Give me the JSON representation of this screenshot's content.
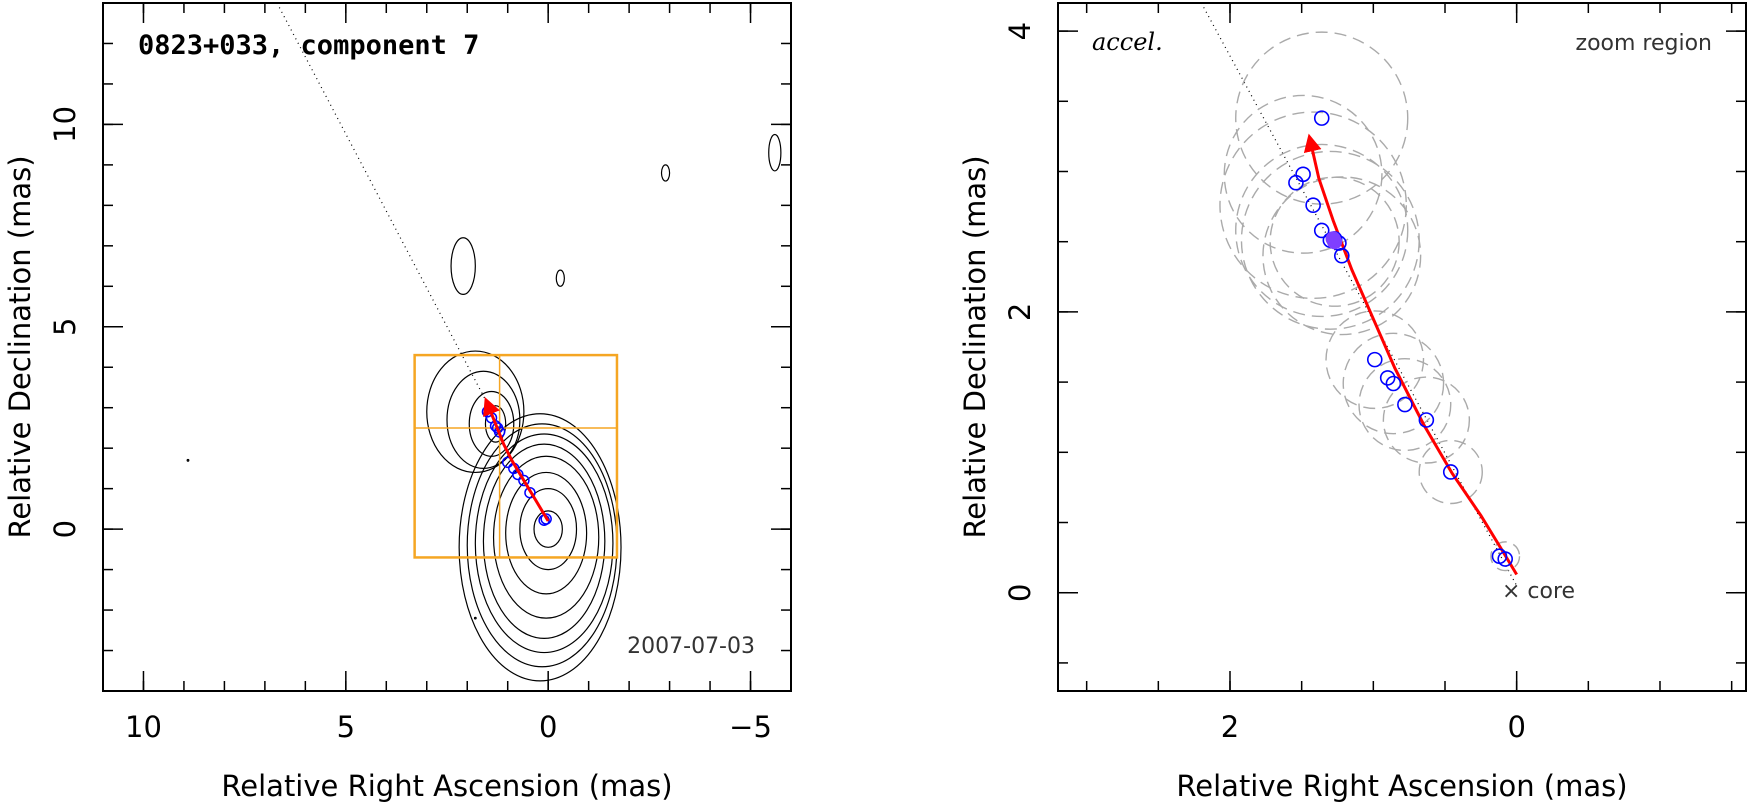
{
  "colors": {
    "box": "#f5a623",
    "path": "#ff0000",
    "circle": "#0000ff",
    "filled": "#7f3fff",
    "gauss": "#aaaaaa",
    "contour": "#000000"
  },
  "chart_data": [
    {
      "type": "scatter",
      "panel": "left",
      "title": "0823+033, component 7",
      "date_label": "2007-07-03",
      "xlabel": "Relative Right Ascension (mas)",
      "ylabel": "Relative Declination (mas)",
      "xlim": [
        11,
        -6
      ],
      "ylim": [
        -4,
        13
      ],
      "xticks": [
        10,
        5,
        0,
        -5
      ],
      "xtick_labels": [
        "10",
        "5",
        "0",
        "−5"
      ],
      "yticks": [
        0,
        5,
        10
      ],
      "ytick_labels": [
        "0",
        "5",
        "10"
      ],
      "zoom_box": {
        "x": [
          3.3,
          -1.7
        ],
        "y": [
          -0.7,
          4.3
        ],
        "cross_x": 1.2,
        "cross_y": 2.5
      },
      "trajectory": {
        "x": [
          0.0,
          0.3,
          0.6,
          0.9,
          1.1,
          1.3,
          1.5
        ],
        "y": [
          0.2,
          0.7,
          1.2,
          1.7,
          2.1,
          2.6,
          3.1
        ]
      },
      "components": {
        "x": [
          0.05,
          0.1,
          0.45,
          0.6,
          0.75,
          0.85,
          1.0,
          1.2,
          1.25,
          1.3,
          1.4,
          1.5
        ],
        "y": [
          0.25,
          0.22,
          0.9,
          1.2,
          1.35,
          1.5,
          1.65,
          2.4,
          2.5,
          2.55,
          2.75,
          2.9
        ]
      }
    },
    {
      "type": "scatter",
      "panel": "right",
      "label_left": "accel.",
      "label_right": "zoom region",
      "core_label": "× core",
      "xlabel": "Relative Right Ascension (mas)",
      "ylabel": "Relative Declination (mas)",
      "xlim": [
        3.2,
        -1.6
      ],
      "ylim": [
        -0.7,
        4.2
      ],
      "xticks": [
        2,
        0
      ],
      "xtick_labels": [
        "2",
        "0"
      ],
      "yticks": [
        0,
        2,
        4
      ],
      "ytick_labels": [
        "0",
        "2",
        "4"
      ],
      "trajectory": {
        "x": [
          0.0,
          0.1,
          0.25,
          0.45,
          0.65,
          0.85,
          1.0,
          1.15,
          1.28,
          1.38,
          1.44
        ],
        "y": [
          0.13,
          0.3,
          0.55,
          0.85,
          1.2,
          1.6,
          1.95,
          2.3,
          2.65,
          2.95,
          3.22
        ]
      },
      "components": {
        "x": [
          0.12,
          0.08,
          0.46,
          0.63,
          0.78,
          0.86,
          0.9,
          0.99,
          1.22,
          1.24,
          1.27,
          1.3,
          1.36,
          1.42,
          1.49,
          1.54,
          1.36
        ],
        "y": [
          0.26,
          0.24,
          0.86,
          1.23,
          1.34,
          1.49,
          1.53,
          1.66,
          2.4,
          2.49,
          2.52,
          2.51,
          2.58,
          2.76,
          2.98,
          2.92,
          3.38
        ]
      },
      "filled_components": {
        "x": [
          1.27,
          1.28
        ],
        "y": [
          2.5,
          2.52
        ]
      },
      "gaussians": {
        "x": [
          0.08,
          0.46,
          0.63,
          0.78,
          0.86,
          0.99,
          1.22,
          1.3,
          1.36,
          1.42,
          1.49,
          1.36,
          1.27
        ],
        "y": [
          0.26,
          0.86,
          1.23,
          1.34,
          1.49,
          1.66,
          2.4,
          2.51,
          2.58,
          2.76,
          2.98,
          3.38,
          2.5
        ],
        "r": [
          0.1,
          0.22,
          0.3,
          0.32,
          0.35,
          0.34,
          0.55,
          0.62,
          0.6,
          0.65,
          0.55,
          0.6,
          0.45
        ]
      }
    }
  ]
}
